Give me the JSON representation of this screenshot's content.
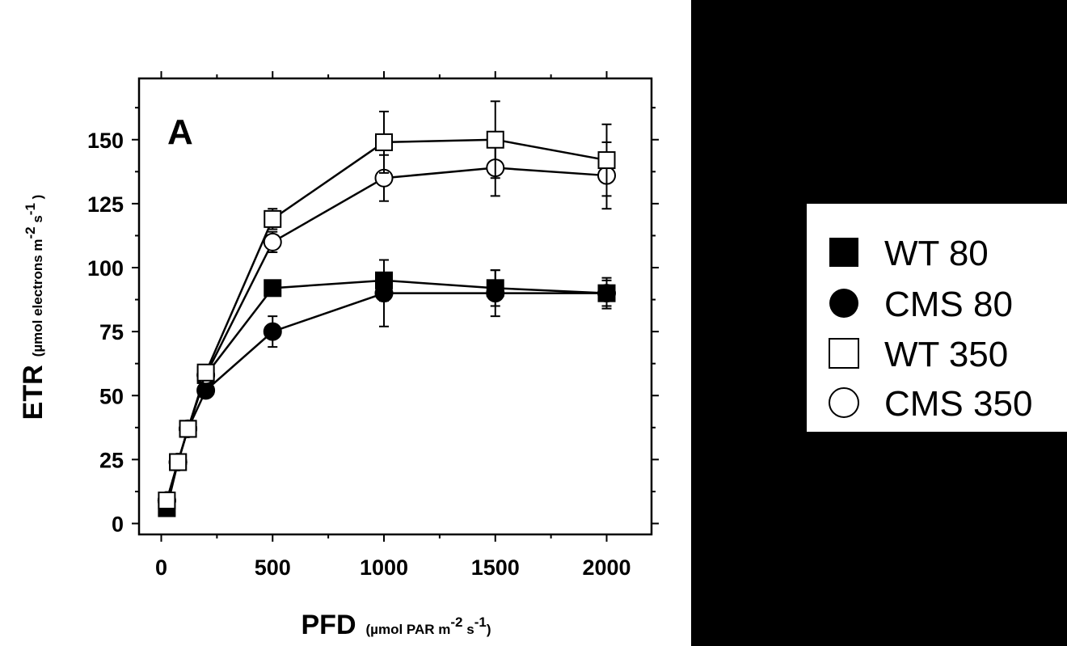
{
  "chart_data": {
    "type": "line",
    "panel_label": "A",
    "xlabel": "PFD",
    "xlabel_unit": {
      "prefix": "(µmol PAR m",
      "sup1": "-2",
      "mid": " s",
      "sup2": "-1",
      "suffix": ")"
    },
    "ylabel": "ETR",
    "ylabel_unit": {
      "prefix": "(µmol electrons m",
      "sup1": "-2",
      "mid": " s",
      "sup2": "-1",
      "suffix": " )"
    },
    "xlim": [
      -100,
      2200
    ],
    "ylim": [
      -5,
      175
    ],
    "xticks": [
      0,
      500,
      1000,
      1500,
      2000
    ],
    "yticks": [
      0,
      25,
      50,
      75,
      100,
      125,
      150
    ],
    "x_minor_ticks": [
      250,
      750,
      1250,
      1750
    ],
    "y_minor_ticks": [
      12.5,
      37.5,
      62.5,
      87.5,
      112.5,
      137.5,
      162.5
    ],
    "grid": false,
    "legend_position": "right, outside plot",
    "series": [
      {
        "name": "WT 80",
        "marker": "square-filled",
        "x": [
          25,
          75,
          120,
          200,
          500,
          1000,
          1500,
          2000
        ],
        "y": [
          6,
          24,
          37,
          58,
          92,
          95,
          92,
          90
        ],
        "err": [
          1,
          1,
          1,
          2,
          1,
          8,
          7,
          6
        ]
      },
      {
        "name": "CMS 80",
        "marker": "circle-filled",
        "x": [
          25,
          75,
          120,
          200,
          500,
          1000,
          1500,
          2000
        ],
        "y": [
          9,
          24,
          37,
          52,
          75,
          90,
          90,
          90
        ],
        "err": [
          1,
          1,
          1,
          2,
          6,
          13,
          9,
          5
        ]
      },
      {
        "name": "WT 350",
        "marker": "square-open",
        "x": [
          25,
          75,
          120,
          200,
          500,
          1000,
          1500,
          2000
        ],
        "y": [
          9,
          24,
          37,
          59,
          119,
          149,
          150,
          142
        ],
        "err": [
          1,
          1,
          1,
          2,
          4,
          12,
          15,
          14
        ]
      },
      {
        "name": "CMS 350",
        "marker": "circle-open",
        "x": [
          25,
          75,
          120,
          200,
          500,
          1000,
          1500,
          2000
        ],
        "y": [
          9,
          24,
          37,
          58,
          110,
          135,
          139,
          136
        ],
        "err": [
          1,
          1,
          1,
          2,
          4,
          9,
          11,
          13
        ]
      }
    ]
  }
}
